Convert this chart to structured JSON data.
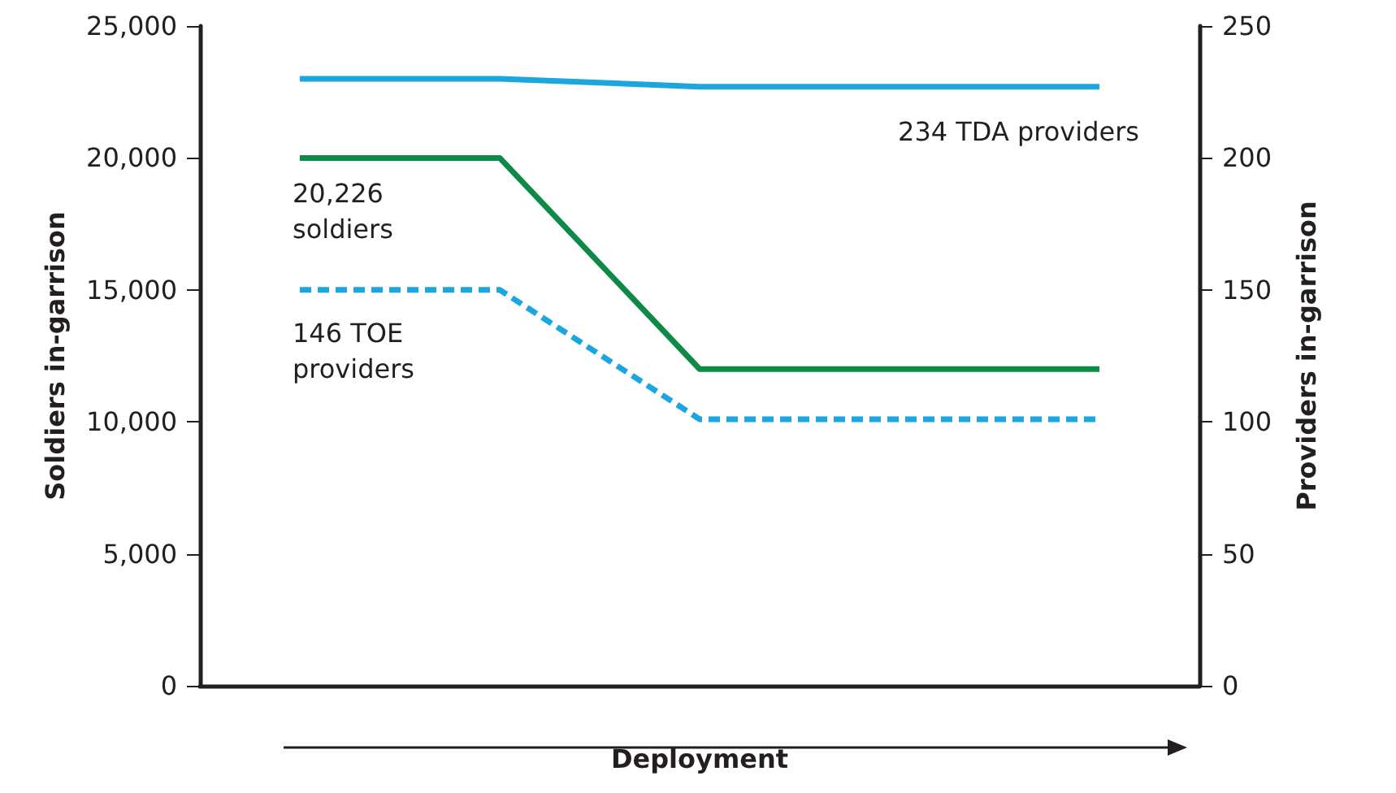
{
  "chart_data": {
    "type": "line",
    "xlabel": "Deployment",
    "ylabel": "Soldiers in-garrison",
    "y2label": "Providers in-garrison",
    "categories": [
      null,
      null,
      null,
      null,
      null
    ],
    "series": [
      {
        "color": "#1ba6e0",
        "values": [
          230,
          230,
          227,
          227,
          227
        ],
        "axis": "y2"
      },
      {
        "color": "#0d8a46",
        "values": [
          20000,
          20000,
          12000,
          12000,
          12000
        ]
      },
      {
        "color": "#1ba6e0",
        "values": [
          150,
          150,
          101,
          101,
          101
        ],
        "axis": "y2",
        "line_style": "dashed"
      }
    ],
    "ylim": [
      0,
      25000
    ],
    "yticks": [
      0,
      {
        "value": 5000,
        "label": "5,000"
      },
      {
        "value": 10000,
        "label": "10,000"
      },
      {
        "value": 15000,
        "label": "15,000"
      },
      {
        "value": 20000,
        "label": "20,000"
      },
      {
        "value": 25000,
        "label": "25,000"
      }
    ],
    "y2lim": [
      0,
      250
    ],
    "y2ticks": [
      0,
      50,
      100,
      150,
      200,
      250
    ],
    "annotations": [
      "234 TDA providers",
      "20,226\nsoldiers",
      "146 TOE\nproviders"
    ],
    "grid": false,
    "marker": "none"
  }
}
